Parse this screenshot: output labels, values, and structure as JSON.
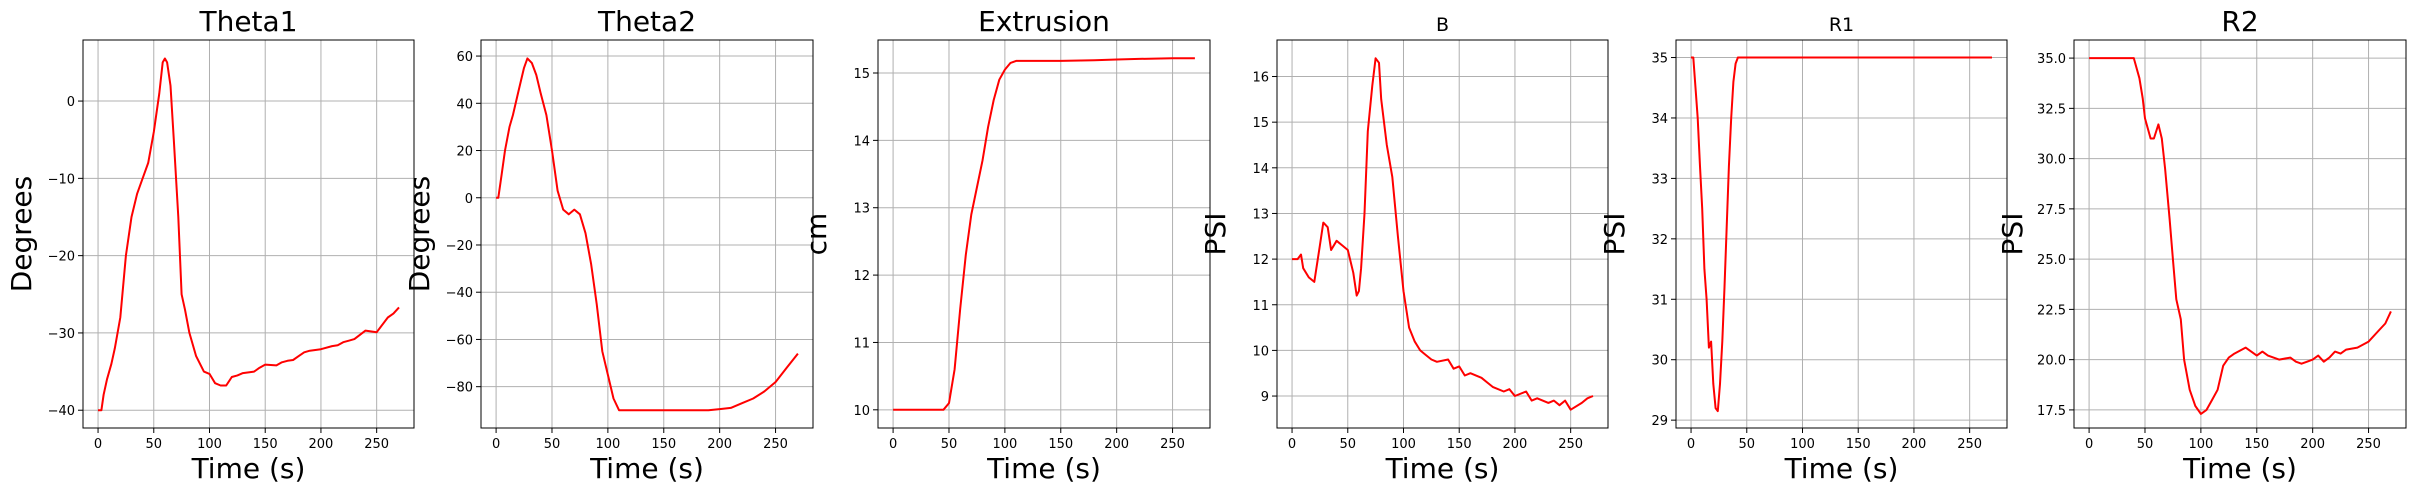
{
  "figure": {
    "line_color": "#ff0000",
    "grid_color": "#b0b0b0"
  },
  "chart_data": [
    {
      "type": "line",
      "title": "Theta1",
      "xlabel": "Time (s)",
      "ylabel": "Degrees",
      "xlim": [
        -13.5,
        283.5
      ],
      "ylim": [
        -42.3,
        7.9
      ],
      "xticks": [
        0,
        50,
        100,
        150,
        200,
        250
      ],
      "yticks": [
        -40,
        -30,
        -20,
        -10,
        0
      ],
      "grid": true,
      "series": [
        {
          "color": "#ff0000",
          "x": [
            0,
            3,
            5,
            8,
            12,
            15,
            20,
            25,
            30,
            35,
            40,
            45,
            50,
            55,
            58,
            60,
            62,
            65,
            68,
            72,
            75,
            78,
            82,
            88,
            95,
            100,
            105,
            110,
            115,
            120,
            125,
            130,
            140,
            145,
            150,
            160,
            165,
            170,
            175,
            180,
            185,
            190,
            200,
            210,
            215,
            220,
            225,
            230,
            240,
            250,
            260,
            265,
            270
          ],
          "y": [
            -40,
            -40,
            -38,
            -36,
            -34,
            -32,
            -28,
            -20,
            -15,
            -12,
            -10,
            -8,
            -4,
            1,
            5,
            5.5,
            5,
            2,
            -5,
            -15,
            -25,
            -27,
            -30,
            -33,
            -35,
            -35.3,
            -36.5,
            -36.8,
            -36.8,
            -35.7,
            -35.5,
            -35.2,
            -35,
            -34.5,
            -34.1,
            -34.2,
            -33.8,
            -33.6,
            -33.5,
            -33,
            -32.5,
            -32.3,
            -32.1,
            -31.7,
            -31.6,
            -31.2,
            -31,
            -30.8,
            -29.7,
            -29.9,
            -28,
            -27.5,
            -26.7
          ]
        }
      ]
    },
    {
      "type": "line",
      "title": "Theta2",
      "xlabel": "Time (s)",
      "ylabel": "Degrees",
      "xlim": [
        -13.5,
        283.5
      ],
      "ylim": [
        -97.5,
        66.8
      ],
      "xticks": [
        0,
        50,
        100,
        150,
        200,
        250
      ],
      "yticks": [
        -80,
        -60,
        -40,
        -20,
        0,
        20,
        40,
        60
      ],
      "grid": true,
      "series": [
        {
          "color": "#ff0000",
          "x": [
            0,
            2,
            5,
            8,
            12,
            15,
            20,
            25,
            28,
            32,
            36,
            40,
            45,
            50,
            55,
            60,
            65,
            70,
            75,
            80,
            85,
            90,
            95,
            100,
            105,
            110,
            115,
            120,
            150,
            180,
            190,
            200,
            210,
            220,
            230,
            240,
            250,
            260,
            270
          ],
          "y": [
            0,
            0,
            10,
            20,
            30,
            35,
            45,
            55,
            59,
            57,
            52,
            44,
            35,
            20,
            3,
            -5,
            -7,
            -5,
            -7,
            -15,
            -28,
            -45,
            -65,
            -75,
            -85,
            -90,
            -90,
            -90,
            -90,
            -90,
            -90,
            -89.5,
            -89,
            -87,
            -85,
            -82,
            -78,
            -72,
            -66
          ]
        }
      ]
    },
    {
      "type": "line",
      "title": "Extrusion",
      "xlabel": "Time (s)",
      "ylabel": "cm",
      "xlim": [
        -13.5,
        283.5
      ],
      "ylim": [
        9.73,
        15.49
      ],
      "xticks": [
        0,
        50,
        100,
        150,
        200,
        250
      ],
      "yticks": [
        10,
        11,
        12,
        13,
        14,
        15
      ],
      "grid": true,
      "series": [
        {
          "color": "#ff0000",
          "x": [
            0,
            30,
            45,
            50,
            55,
            60,
            65,
            70,
            75,
            80,
            85,
            90,
            95,
            100,
            105,
            110,
            120,
            150,
            180,
            200,
            220,
            250,
            270
          ],
          "y": [
            10,
            10,
            10,
            10.1,
            10.6,
            11.5,
            12.3,
            12.9,
            13.3,
            13.7,
            14.2,
            14.6,
            14.9,
            15.05,
            15.15,
            15.18,
            15.18,
            15.18,
            15.19,
            15.2,
            15.21,
            15.22,
            15.22
          ]
        }
      ]
    },
    {
      "type": "line",
      "title": "B",
      "xlabel": "Time (s)",
      "ylabel": "PSI",
      "xlim": [
        -13.5,
        283.5
      ],
      "ylim": [
        8.3,
        16.8
      ],
      "xticks": [
        0,
        50,
        100,
        150,
        200,
        250
      ],
      "yticks": [
        9,
        10,
        11,
        12,
        13,
        14,
        15,
        16
      ],
      "grid": true,
      "series": [
        {
          "color": "#ff0000",
          "x": [
            0,
            5,
            8,
            10,
            15,
            20,
            25,
            28,
            32,
            35,
            40,
            45,
            50,
            55,
            58,
            60,
            62,
            65,
            68,
            72,
            75,
            78,
            80,
            85,
            90,
            95,
            100,
            105,
            110,
            115,
            120,
            125,
            130,
            140,
            145,
            150,
            155,
            160,
            170,
            175,
            180,
            190,
            195,
            200,
            210,
            215,
            220,
            230,
            235,
            240,
            245,
            250,
            260,
            265,
            270
          ],
          "y": [
            12,
            12,
            12.1,
            11.8,
            11.6,
            11.5,
            12.3,
            12.8,
            12.7,
            12.2,
            12.4,
            12.3,
            12.2,
            11.7,
            11.2,
            11.3,
            11.8,
            13,
            14.8,
            15.8,
            16.4,
            16.3,
            15.5,
            14.5,
            13.8,
            12.5,
            11.3,
            10.5,
            10.2,
            10.0,
            9.9,
            9.8,
            9.75,
            9.8,
            9.6,
            9.65,
            9.45,
            9.5,
            9.4,
            9.3,
            9.2,
            9.1,
            9.15,
            9.0,
            9.1,
            8.9,
            8.95,
            8.85,
            8.9,
            8.8,
            8.9,
            8.7,
            8.85,
            8.95,
            9.0
          ]
        }
      ]
    },
    {
      "type": "line",
      "title": "R1",
      "xlabel": "Time (s)",
      "ylabel": "PSI",
      "xlim": [
        -13.5,
        283.5
      ],
      "ylim": [
        28.87,
        35.29
      ],
      "xticks": [
        0,
        50,
        100,
        150,
        200,
        250
      ],
      "yticks": [
        29,
        30,
        31,
        32,
        33,
        34,
        35
      ],
      "grid": true,
      "series": [
        {
          "color": "#ff0000",
          "x": [
            0,
            2,
            4,
            6,
            8,
            10,
            12,
            14,
            16,
            18,
            20,
            22,
            24,
            26,
            28,
            30,
            32,
            34,
            36,
            38,
            40,
            42,
            45,
            50,
            60,
            100,
            150,
            200,
            250,
            270
          ],
          "y": [
            35,
            35,
            34.5,
            34,
            33.2,
            32.5,
            31.5,
            31,
            30.2,
            30.3,
            29.6,
            29.2,
            29.15,
            29.6,
            30.3,
            31.2,
            32.2,
            33.2,
            34,
            34.6,
            34.9,
            35,
            35,
            35,
            35,
            35,
            35,
            35,
            35,
            35
          ]
        }
      ]
    },
    {
      "type": "line",
      "title": "R2",
      "xlabel": "Time (s)",
      "ylabel": "PSI",
      "xlim": [
        -13.5,
        283.5
      ],
      "ylim": [
        16.6,
        35.9
      ],
      "xticks": [
        0,
        50,
        100,
        150,
        200,
        250
      ],
      "yticks": [
        17.5,
        20.0,
        22.5,
        25.0,
        27.5,
        30.0,
        32.5,
        35.0
      ],
      "grid": true,
      "series": [
        {
          "color": "#ff0000",
          "x": [
            0,
            10,
            20,
            30,
            40,
            45,
            48,
            50,
            55,
            58,
            62,
            65,
            68,
            72,
            75,
            78,
            82,
            85,
            90,
            95,
            100,
            105,
            110,
            115,
            120,
            125,
            130,
            140,
            145,
            150,
            155,
            160,
            170,
            180,
            185,
            190,
            195,
            200,
            205,
            210,
            215,
            220,
            225,
            230,
            240,
            250,
            260,
            265,
            270
          ],
          "y": [
            35,
            35,
            35,
            35,
            35,
            34,
            33,
            32,
            31,
            31,
            31.7,
            31,
            29.5,
            27,
            25,
            23,
            22,
            20,
            18.5,
            17.7,
            17.3,
            17.5,
            18,
            18.5,
            19.7,
            20.1,
            20.3,
            20.6,
            20.4,
            20.2,
            20.4,
            20.2,
            20,
            20.1,
            19.9,
            19.8,
            19.9,
            20,
            20.2,
            19.9,
            20.1,
            20.4,
            20.3,
            20.5,
            20.6,
            20.9,
            21.5,
            21.8,
            22.4
          ]
        }
      ]
    }
  ]
}
